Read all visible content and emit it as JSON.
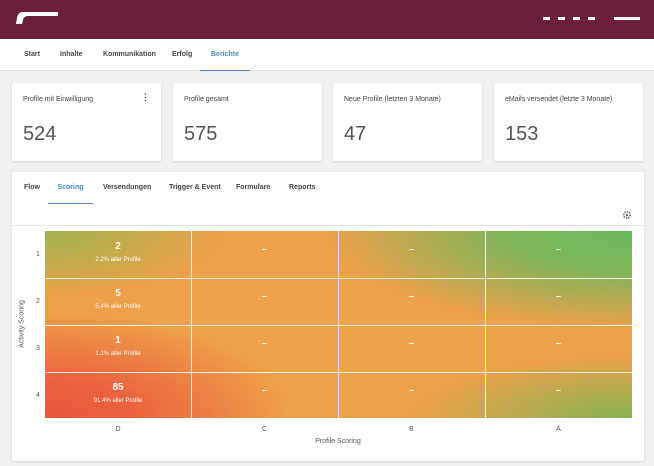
{
  "header": {
    "menu_icon": "hamburger-icon",
    "logo_icon": "brand-logo",
    "brand_color": "#6b1f3d"
  },
  "mainnav": {
    "items": [
      {
        "label": "Start"
      },
      {
        "label": "Inhalte"
      },
      {
        "label": "Kommunikation"
      },
      {
        "label": "Erfolg"
      },
      {
        "label": "Berichte"
      }
    ],
    "active": "Berichte",
    "accent_color": "#4a8ac8"
  },
  "kpis": [
    {
      "label": "Profile mit Einwilligung",
      "value": "524"
    },
    {
      "label": "Profile gesamt",
      "value": "575"
    },
    {
      "label": "Neue Profile (letzten 3 Monate)",
      "value": "47"
    },
    {
      "label": "eMails versendet (letzte 3 Monate)",
      "value": "153"
    }
  ],
  "kpi_more_icon": "more-vertical-icon",
  "kpi_more_glyph": "⋮",
  "tabs": {
    "items": [
      {
        "label": "Flow"
      },
      {
        "label": "Scoring"
      },
      {
        "label": "Versendungen"
      },
      {
        "label": "Trigger & Event"
      },
      {
        "label": "Formulare"
      },
      {
        "label": "Reports"
      }
    ],
    "active": "Scoring",
    "settings_icon": "gear-icon"
  },
  "chart_data": {
    "type": "heatmap",
    "x_categories": [
      "D",
      "C",
      "B",
      "A"
    ],
    "y_categories": [
      "1",
      "2",
      "3",
      "4"
    ],
    "xlabel": "Profile Scoring",
    "ylabel": "Activity Scoring",
    "cells": [
      [
        "2",
        "–",
        "–",
        "–"
      ],
      [
        "5",
        "–",
        "–",
        "–"
      ],
      [
        "1",
        "–",
        "–",
        "–"
      ],
      [
        "85",
        "–",
        "–",
        "–"
      ]
    ],
    "cell_subtitles": [
      [
        "2.2% aller Profile",
        "",
        "",
        ""
      ],
      [
        "5.4% aller Profile",
        "",
        "",
        ""
      ],
      [
        "1.1% aller Profile",
        "",
        "",
        ""
      ],
      [
        "91.4% aller Profile",
        "",
        "",
        ""
      ]
    ],
    "color_scale": {
      "low": "#e9573c",
      "mid": "#efa04a",
      "high": "#6ab95d"
    }
  }
}
